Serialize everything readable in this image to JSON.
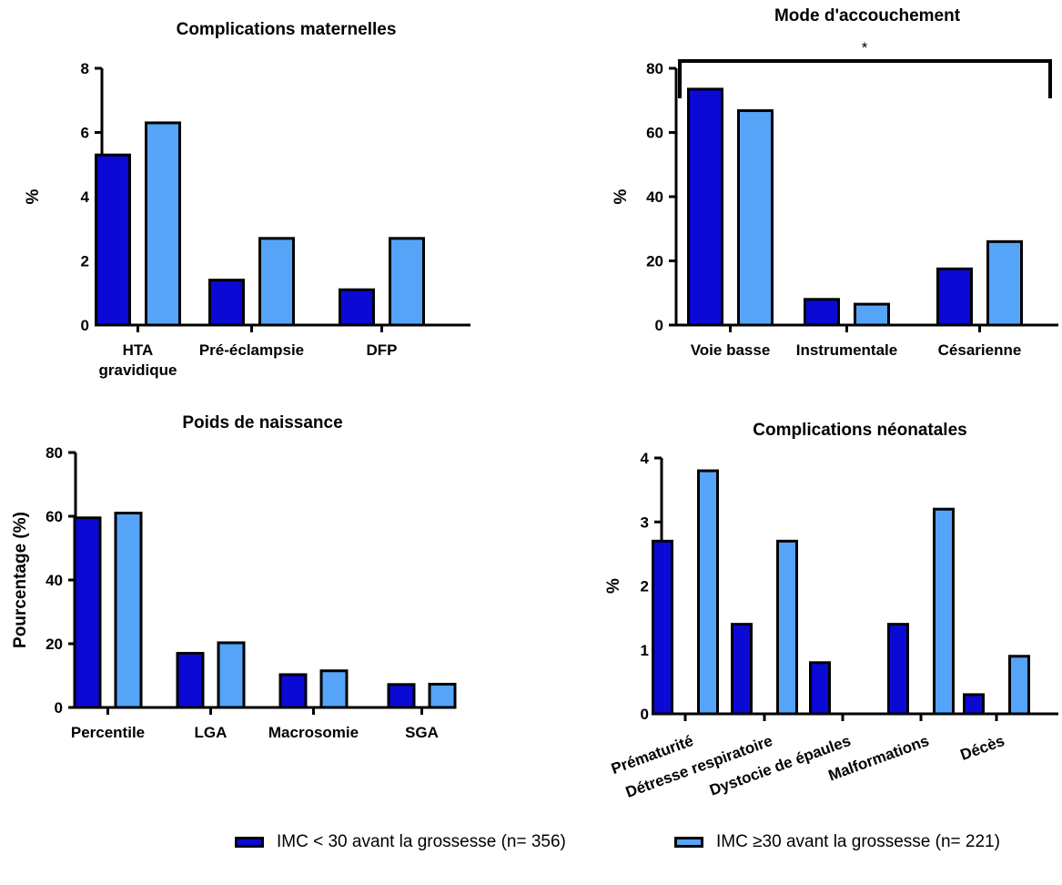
{
  "colors": {
    "series_a": "#0a0ad4",
    "series_b": "#55a4f8",
    "stroke": "#000000"
  },
  "legend": {
    "series_a": "IMC < 30 avant la grossesse (n= 356)",
    "series_b": "IMC ≥30 avant la grossesse (n= 221)"
  },
  "chart_data": [
    {
      "type": "bar",
      "title": "Complications maternelles",
      "ylabel": "%",
      "ylim": [
        0,
        8
      ],
      "yticks": [
        0,
        2,
        4,
        6,
        8
      ],
      "categories": [
        "HTA gravidique",
        "Pré-éclampsie",
        "DFP"
      ],
      "series": [
        {
          "name": "IMC < 30 avant la grossesse (n= 356)",
          "values": [
            5.3,
            1.4,
            1.1
          ]
        },
        {
          "name": "IMC ≥30 avant la grossesse (n= 221)",
          "values": [
            6.3,
            2.7,
            2.7
          ]
        }
      ]
    },
    {
      "type": "bar",
      "title": "Mode d'accouchement",
      "ylabel": "%",
      "ylim": [
        0,
        80
      ],
      "yticks": [
        0,
        20,
        40,
        60,
        80
      ],
      "categories": [
        "Voie basse",
        "Instrumentale",
        "Césarienne"
      ],
      "annotation": "*",
      "series": [
        {
          "name": "IMC < 30 avant la grossesse (n= 356)",
          "values": [
            73.5,
            8.0,
            17.5
          ]
        },
        {
          "name": "IMC ≥30 avant la grossesse (n= 221)",
          "values": [
            66.8,
            6.5,
            26.0
          ]
        }
      ]
    },
    {
      "type": "bar",
      "title": "Poids de naissance",
      "ylabel": "Pourcentage (%)",
      "ylim": [
        0,
        80
      ],
      "yticks": [
        0,
        20,
        40,
        60,
        80
      ],
      "categories": [
        "Percentile",
        "LGA",
        "Macrosomie",
        "SGA"
      ],
      "series": [
        {
          "name": "IMC < 30 avant la grossesse (n= 356)",
          "values": [
            59.5,
            17.0,
            10.3,
            7.2
          ]
        },
        {
          "name": "IMC ≥30 avant la grossesse (n= 221)",
          "values": [
            61.0,
            20.3,
            11.5,
            7.3
          ]
        }
      ]
    },
    {
      "type": "bar",
      "title": "Complications néonatales",
      "ylabel": "%",
      "ylim": [
        0,
        4
      ],
      "yticks": [
        0,
        1,
        2,
        3,
        4
      ],
      "categories": [
        "Prématurité",
        "Détresse respiratoire",
        "Dystocie de épaules",
        "Malformations",
        "Décès"
      ],
      "series": [
        {
          "name": "IMC < 30 avant la grossesse (n= 356)",
          "values": [
            2.7,
            1.4,
            0.8,
            1.4,
            0.3
          ]
        },
        {
          "name": "IMC ≥30 avant la grossesse (n= 221)",
          "values": [
            3.8,
            2.7,
            0.0,
            3.2,
            0.9
          ]
        }
      ]
    }
  ]
}
